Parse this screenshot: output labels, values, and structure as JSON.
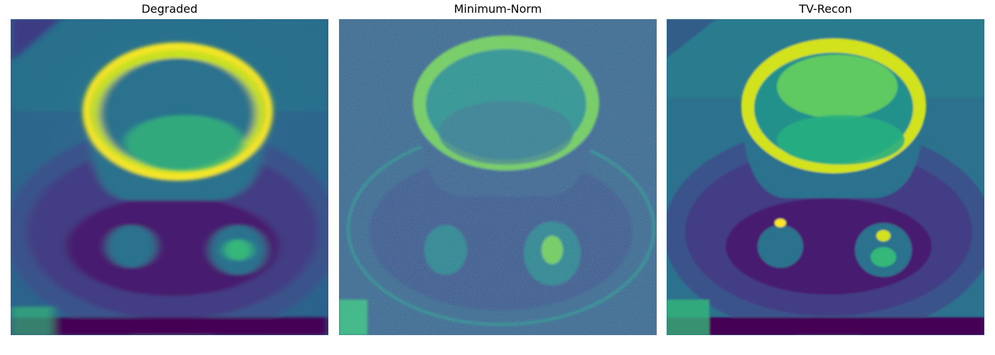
{
  "panels": [
    {
      "title": "Degraded"
    },
    {
      "title": "Minimum-Norm"
    },
    {
      "title": "TV-Recon"
    }
  ],
  "colormap": {
    "name": "viridis",
    "dark": "#440154",
    "deep_blue": "#3b528b",
    "blue": "#2c728e",
    "teal": "#21918c",
    "green": "#35b779",
    "light_green": "#6ccd5a",
    "yellow": "#d2e21b",
    "bright_yellow": "#fde725"
  }
}
